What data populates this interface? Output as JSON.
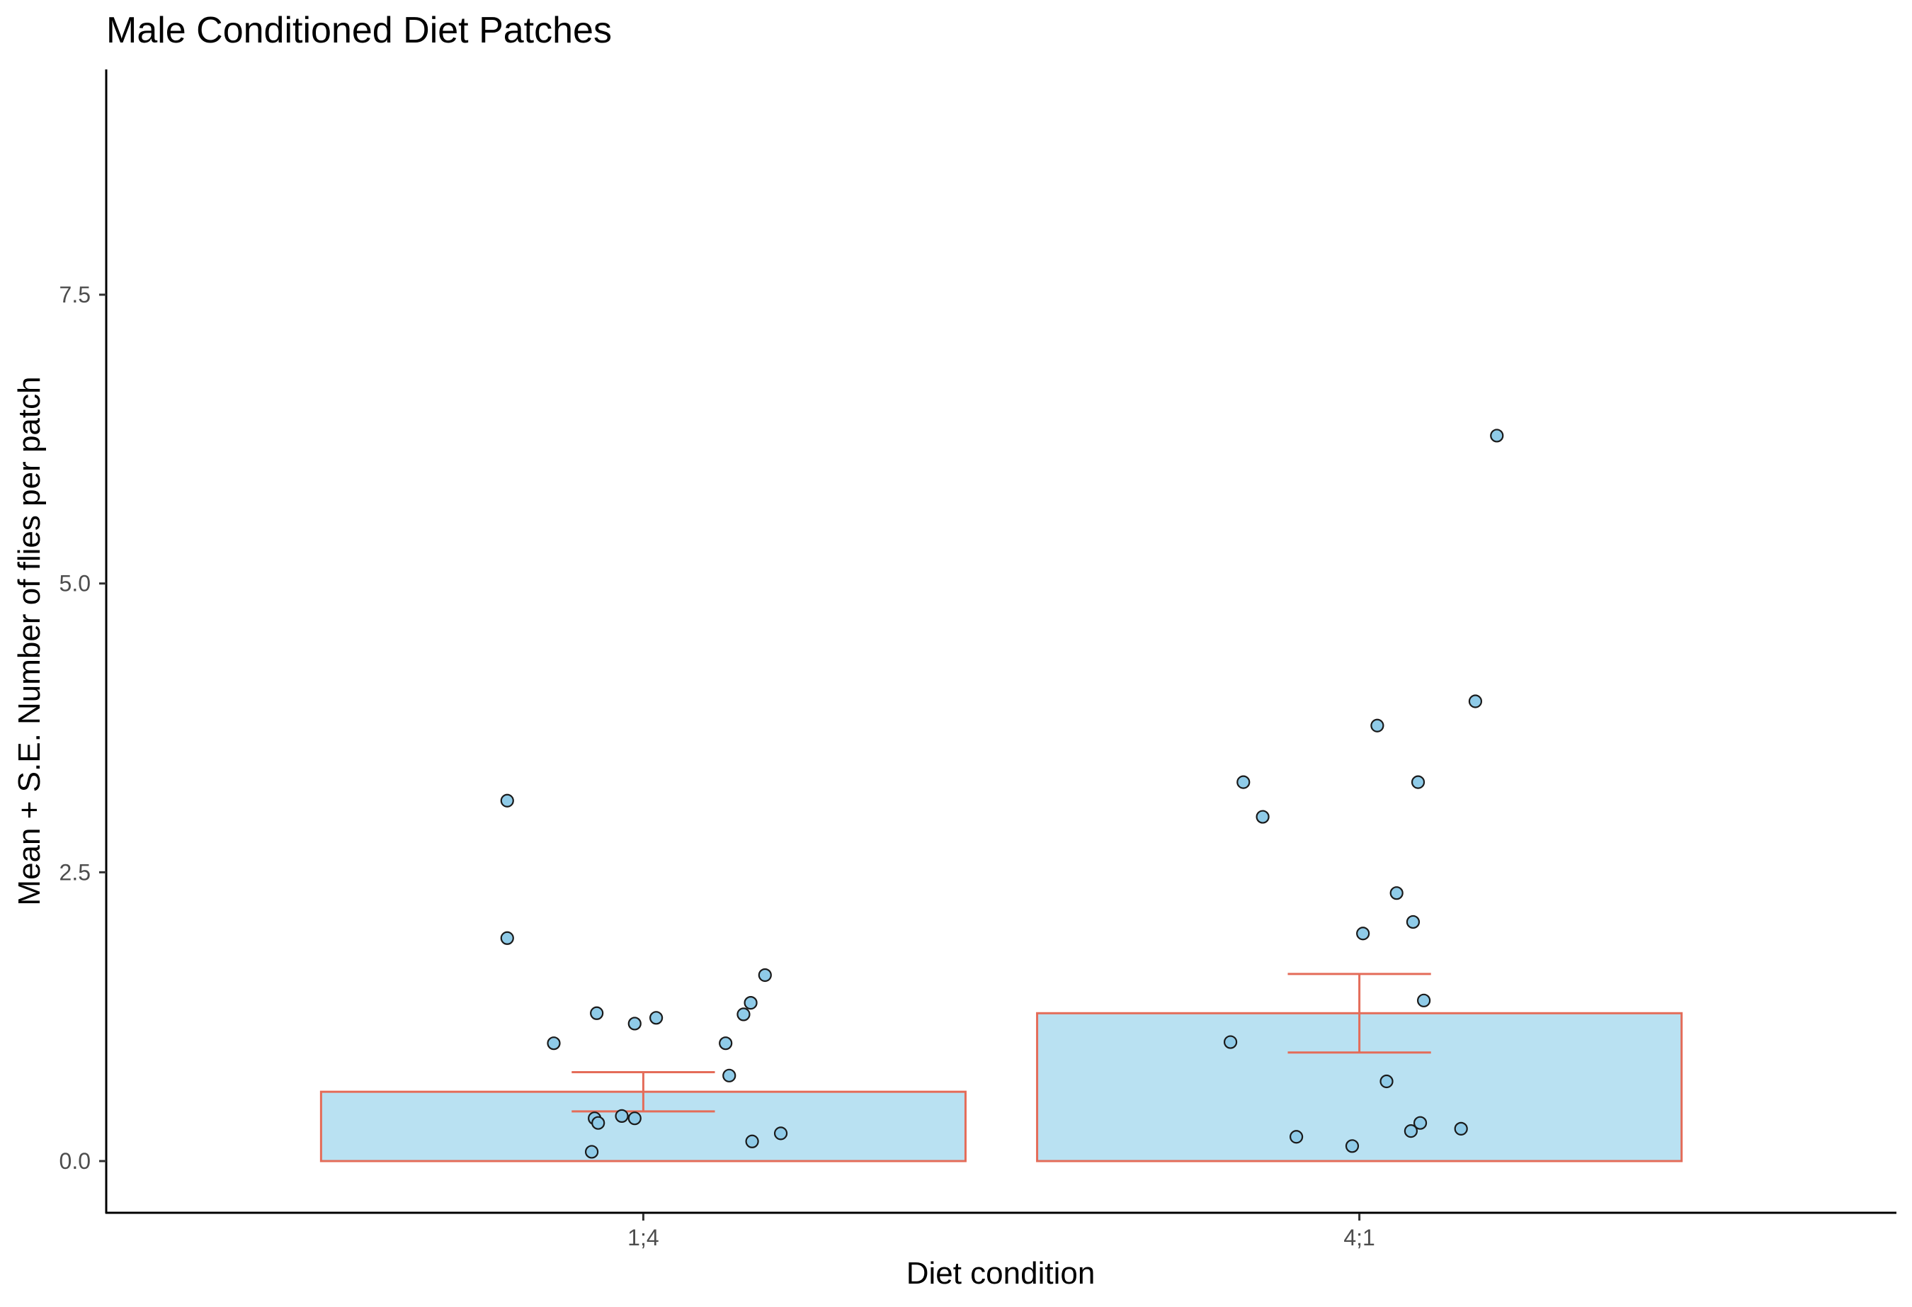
{
  "chart_data": {
    "type": "bar",
    "title": "Male Conditioned Diet Patches",
    "xlabel": "Diet condition",
    "ylabel": "Mean + S.E. Number of flies per patch",
    "categories": [
      "1;4",
      "4;1"
    ],
    "values": [
      0.6,
      1.28
    ],
    "error": [
      {
        "low": 0.43,
        "high": 0.77
      },
      {
        "low": 0.94,
        "high": 1.62
      }
    ],
    "ylim": [
      -0.45,
      9.4
    ],
    "yticks": [
      0.0,
      2.5,
      5.0,
      7.5
    ],
    "ytick_labels": [
      "0.0",
      "2.5",
      "5.0",
      "7.5"
    ],
    "grid": false,
    "colors": {
      "bar_fill": "#b9e1f2",
      "bar_outline": "#e46c59",
      "errorbar": "#e46c59",
      "point_fill": "#8fcbe8",
      "point_outline": "#1a1a1a"
    },
    "points": [
      {
        "group": "1;4",
        "jitter": -0.19,
        "y": 3.12
      },
      {
        "group": "1;4",
        "jitter": -0.19,
        "y": 1.93
      },
      {
        "group": "1;4",
        "jitter": -0.125,
        "y": 1.02
      },
      {
        "group": "1;4",
        "jitter": -0.065,
        "y": 1.28
      },
      {
        "group": "1;4",
        "jitter": -0.012,
        "y": 1.19
      },
      {
        "group": "1;4",
        "jitter": 0.018,
        "y": 1.24
      },
      {
        "group": "1;4",
        "jitter": 0.115,
        "y": 1.02
      },
      {
        "group": "1;4",
        "jitter": 0.12,
        "y": 0.74
      },
      {
        "group": "1;4",
        "jitter": 0.14,
        "y": 1.27
      },
      {
        "group": "1;4",
        "jitter": 0.15,
        "y": 1.37
      },
      {
        "group": "1;4",
        "jitter": 0.17,
        "y": 1.61
      },
      {
        "group": "1;4",
        "jitter": -0.068,
        "y": 0.37
      },
      {
        "group": "1;4",
        "jitter": -0.063,
        "y": 0.33
      },
      {
        "group": "1;4",
        "jitter": -0.03,
        "y": 0.39
      },
      {
        "group": "1;4",
        "jitter": -0.012,
        "y": 0.37
      },
      {
        "group": "1;4",
        "jitter": -0.072,
        "y": 0.08
      },
      {
        "group": "1;4",
        "jitter": 0.152,
        "y": 0.17
      },
      {
        "group": "1;4",
        "jitter": 0.192,
        "y": 0.24
      },
      {
        "group": "4;1",
        "jitter": -0.162,
        "y": 3.28
      },
      {
        "group": "4;1",
        "jitter": -0.135,
        "y": 2.98
      },
      {
        "group": "4;1",
        "jitter": -0.18,
        "y": 1.03
      },
      {
        "group": "4;1",
        "jitter": 0.025,
        "y": 3.77
      },
      {
        "group": "4;1",
        "jitter": 0.005,
        "y": 1.97
      },
      {
        "group": "4;1",
        "jitter": 0.052,
        "y": 2.32
      },
      {
        "group": "4;1",
        "jitter": 0.075,
        "y": 2.07
      },
      {
        "group": "4;1",
        "jitter": 0.082,
        "y": 3.28
      },
      {
        "group": "4;1",
        "jitter": 0.09,
        "y": 1.39
      },
      {
        "group": "4;1",
        "jitter": 0.162,
        "y": 3.98
      },
      {
        "group": "4;1",
        "jitter": 0.192,
        "y": 6.28
      },
      {
        "group": "4;1",
        "jitter": 0.038,
        "y": 0.69
      },
      {
        "group": "4;1",
        "jitter": -0.088,
        "y": 0.21
      },
      {
        "group": "4;1",
        "jitter": -0.01,
        "y": 0.13
      },
      {
        "group": "4;1",
        "jitter": 0.072,
        "y": 0.26
      },
      {
        "group": "4;1",
        "jitter": 0.085,
        "y": 0.33
      },
      {
        "group": "4;1",
        "jitter": 0.142,
        "y": 0.28
      }
    ]
  }
}
